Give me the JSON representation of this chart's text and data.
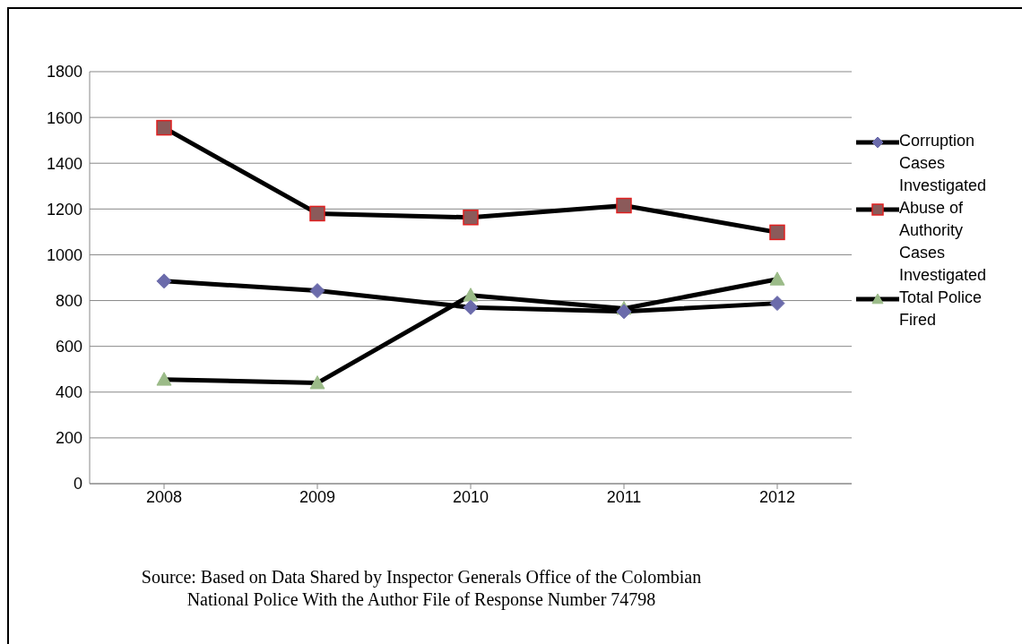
{
  "chart_data": {
    "type": "line",
    "categories": [
      "2008",
      "2009",
      "2010",
      "2011",
      "2012"
    ],
    "series": [
      {
        "name": "Corruption Cases Investigated",
        "color": "#6b6bab",
        "marker": "diamond",
        "values": [
          885,
          843,
          770,
          752,
          788
        ]
      },
      {
        "name": "Abuse of Authority Cases Investigated",
        "color": "#8b5a5a",
        "marker": "square",
        "values": [
          1555,
          1180,
          1163,
          1215,
          1098
        ]
      },
      {
        "name": "Total Police Fired",
        "color": "#9bbb88",
        "marker": "triangle",
        "values": [
          455,
          440,
          823,
          765,
          893
        ]
      }
    ],
    "ylim": [
      0,
      1800
    ],
    "yticks": [
      0,
      200,
      400,
      600,
      800,
      1000,
      1200,
      1400,
      1600,
      1800
    ],
    "grid": "y",
    "legend": "right",
    "line_style": "solid",
    "annotations": [
      "Source: Based on Data Shared by Inspector Generals Office of the Colombian National Police With the Author File of Response Number 74798"
    ]
  }
}
